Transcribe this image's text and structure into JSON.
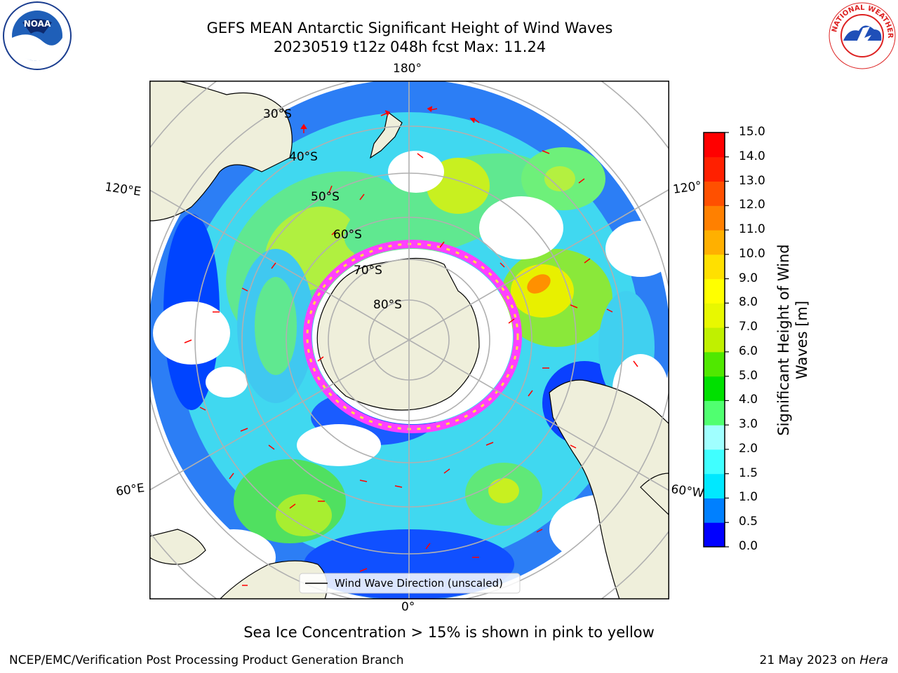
{
  "title": {
    "line1": "GEFS MEAN Antarctic Significant Height of Wind Waves",
    "line2": "20230519 t12z 048h fcst   Max: 11.24"
  },
  "logos": {
    "left": "noaa-logo",
    "left_text": "NOAA",
    "right": "nws-logo",
    "right_text": "NATIONAL WEATHER SERVICE"
  },
  "map": {
    "projection": "south polar stereographic",
    "lat_labels": [
      "30°S",
      "40°S",
      "50°S",
      "60°S",
      "70°S",
      "80°S"
    ],
    "lon_labels": {
      "top": "180°",
      "bottom": "0°",
      "left_upper": "120°E",
      "left_lower": "60°E",
      "right_upper": "120°",
      "right_lower": "60°W"
    },
    "legend": "Wind Wave Direction (unscaled)",
    "colors": {
      "land": "#efefdb",
      "grid": "#b0b0b0",
      "arrow": "#ff0000",
      "ice": "#ff40ff"
    }
  },
  "colorbar": {
    "label_line1": "Significant Height of Wind",
    "label_line2": "Waves [m]",
    "ticks": [
      "0.0",
      "0.5",
      "1.0",
      "1.5",
      "2.0",
      "3.0",
      "4.0",
      "5.0",
      "6.0",
      "7.0",
      "8.0",
      "9.0",
      "10.0",
      "11.0",
      "12.0",
      "13.0",
      "14.0",
      "15.0"
    ],
    "colors": [
      "#0000ff",
      "#0080ff",
      "#00e8ff",
      "#40ffff",
      "#a0ffff",
      "#50ff70",
      "#00e000",
      "#50e800",
      "#c0f000",
      "#e8f800",
      "#ffff00",
      "#ffe000",
      "#ffb000",
      "#ff8000",
      "#ff5000",
      "#ff2000",
      "#ff0000"
    ]
  },
  "footer": {
    "note": "Sea Ice Concentration > 15% is shown in pink to yellow",
    "credit_left": "NCEP/EMC/Verification Post Processing Product Generation Branch",
    "credit_date": "21 May 2023 on ",
    "credit_machine": "Hera"
  }
}
